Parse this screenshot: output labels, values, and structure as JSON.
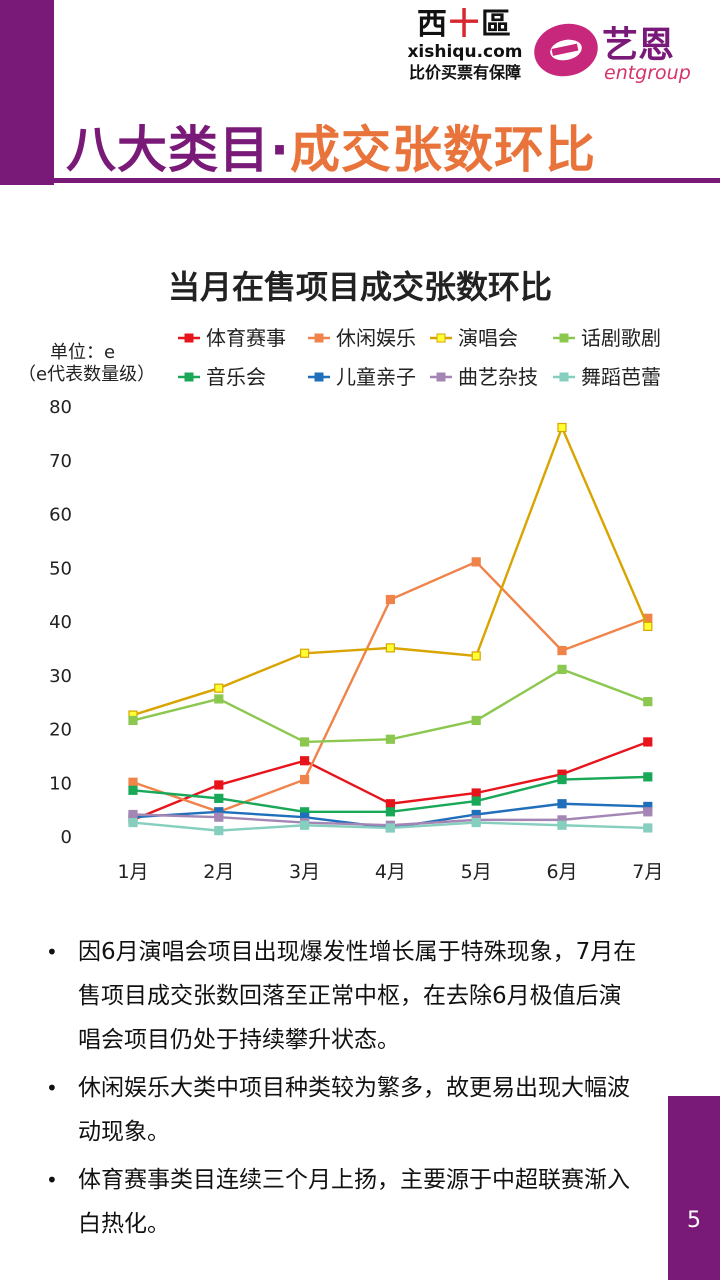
{
  "header": {
    "title_part1": "八大类目·",
    "title_part2": "成交张数环比",
    "logo_xishiqu": {
      "mark_left": "西",
      "mark_mid": "十",
      "mark_right": "區",
      "url": "xishiqu.com",
      "slogan": "比价买票有保障"
    },
    "logo_entgroup": {
      "name": "艺恩",
      "sub": "entgroup"
    }
  },
  "colors": {
    "accent_purple": "#7a1a78",
    "accent_orange": "#e8743b"
  },
  "chart_data": {
    "type": "line",
    "title": "当月在售项目成交张数环比",
    "unit_label": "单位：e",
    "unit_note": "（e代表数量级）",
    "categories": [
      "1月",
      "2月",
      "3月",
      "4月",
      "5月",
      "6月",
      "7月"
    ],
    "ylim": [
      0,
      80
    ],
    "yticks": [
      0,
      10,
      20,
      30,
      40,
      50,
      60,
      70,
      80
    ],
    "legend_position": "top",
    "grid": false,
    "series": [
      {
        "name": "体育赛事",
        "color": "#e8141c",
        "values": [
          3,
          9.5,
          14,
          6,
          8,
          11.5,
          17.5
        ]
      },
      {
        "name": "休闲娱乐",
        "color": "#f0834a",
        "values": [
          10,
          4.5,
          10.5,
          44,
          51,
          34.5,
          40.5
        ]
      },
      {
        "name": "演唱会",
        "color": "#d9a400",
        "values": [
          22.5,
          27.5,
          34,
          35,
          33.5,
          76,
          39
        ]
      },
      {
        "name": "话剧歌剧",
        "color": "#8cc850",
        "values": [
          21.5,
          25.5,
          17.5,
          18,
          21.5,
          31,
          25
        ]
      },
      {
        "name": "音乐会",
        "color": "#18a858",
        "values": [
          8.5,
          7,
          4.5,
          4.5,
          6.5,
          10.5,
          11
        ]
      },
      {
        "name": "儿童亲子",
        "color": "#1f6fba",
        "values": [
          3.5,
          4.5,
          3.5,
          1.5,
          4,
          6,
          5.5
        ]
      },
      {
        "name": "曲艺杂技",
        "color": "#a486b5",
        "values": [
          4,
          3.5,
          2.5,
          2,
          3,
          3,
          4.5
        ]
      },
      {
        "name": "舞蹈芭蕾",
        "color": "#86cfbf",
        "values": [
          2.5,
          1,
          2,
          1.5,
          2.5,
          2,
          1.5
        ]
      }
    ]
  },
  "bullets": [
    "因6月演唱会项目出现爆发性增长属于特殊现象，7月在售项目成交张数回落至正常中枢，在去除6月极值后演唱会项目仍处于持续攀升状态。",
    "休闲娱乐大类中项目种类较为繁多，故更易出现大幅波动现象。",
    "体育赛事类目连续三个月上扬，主要源于中超联赛渐入白热化。"
  ],
  "bullet_marker": "•",
  "page_number": "5"
}
